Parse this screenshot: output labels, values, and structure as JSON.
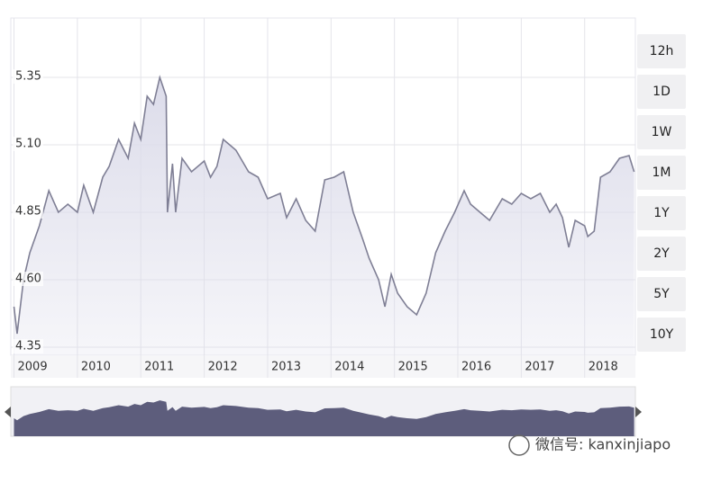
{
  "chart_data": {
    "type": "line",
    "x": [
      2009.0,
      2009.05,
      2009.15,
      2009.25,
      2009.4,
      2009.55,
      2009.7,
      2009.85,
      2010.0,
      2010.1,
      2010.25,
      2010.4,
      2010.5,
      2010.65,
      2010.8,
      2010.9,
      2011.0,
      2011.1,
      2011.2,
      2011.3,
      2011.4,
      2011.42,
      2011.5,
      2011.55,
      2011.65,
      2011.8,
      2012.0,
      2012.1,
      2012.2,
      2012.3,
      2012.5,
      2012.7,
      2012.85,
      2013.0,
      2013.2,
      2013.3,
      2013.45,
      2013.6,
      2013.75,
      2013.9,
      2014.05,
      2014.2,
      2014.35,
      2014.5,
      2014.6,
      2014.75,
      2014.85,
      2014.95,
      2015.05,
      2015.2,
      2015.35,
      2015.5,
      2015.65,
      2015.8,
      2015.95,
      2016.1,
      2016.2,
      2016.35,
      2016.5,
      2016.7,
      2016.85,
      2017.0,
      2017.15,
      2017.3,
      2017.45,
      2017.55,
      2017.65,
      2017.75,
      2017.85,
      2018.0,
      2018.05,
      2018.15,
      2018.25,
      2018.4,
      2018.55,
      2018.7,
      2018.78
    ],
    "values": [
      4.5,
      4.4,
      4.6,
      4.7,
      4.8,
      4.93,
      4.85,
      4.88,
      4.85,
      4.95,
      4.85,
      4.98,
      5.02,
      5.12,
      5.05,
      5.18,
      5.12,
      5.28,
      5.25,
      5.35,
      5.28,
      4.85,
      5.03,
      4.85,
      5.05,
      5.0,
      5.04,
      4.98,
      5.02,
      5.12,
      5.08,
      5.0,
      4.98,
      4.9,
      4.92,
      4.83,
      4.9,
      4.82,
      4.78,
      4.97,
      4.98,
      5.0,
      4.85,
      4.75,
      4.68,
      4.6,
      4.5,
      4.62,
      4.55,
      4.5,
      4.47,
      4.55,
      4.7,
      4.78,
      4.85,
      4.93,
      4.88,
      4.85,
      4.82,
      4.9,
      4.88,
      4.92,
      4.9,
      4.92,
      4.85,
      4.88,
      4.83,
      4.72,
      4.82,
      4.8,
      4.76,
      4.78,
      4.98,
      5.0,
      5.05,
      5.06,
      5.0
    ],
    "color": "#7f7f95",
    "fill_color": "#dcdcea",
    "navigator_color": "#5d5d7c",
    "xlim": [
      2008.95,
      2018.8
    ],
    "xticks": [
      2009,
      2010,
      2011,
      2012,
      2013,
      2014,
      2015,
      2016,
      2017,
      2018
    ],
    "ylim": [
      4.32,
      5.57
    ],
    "yticks": [
      4.35,
      {
        "value": 4.6,
        "label": "4.60"
      },
      4.85,
      {
        "value": 5.1,
        "label": "5.10"
      },
      5.35
    ],
    "grid": true
  },
  "range_buttons": [
    "12h",
    "1D",
    "1W",
    "1M",
    "1Y",
    "2Y",
    "5Y",
    "10Y"
  ],
  "watermark": "微信号: kanxinjiapo"
}
